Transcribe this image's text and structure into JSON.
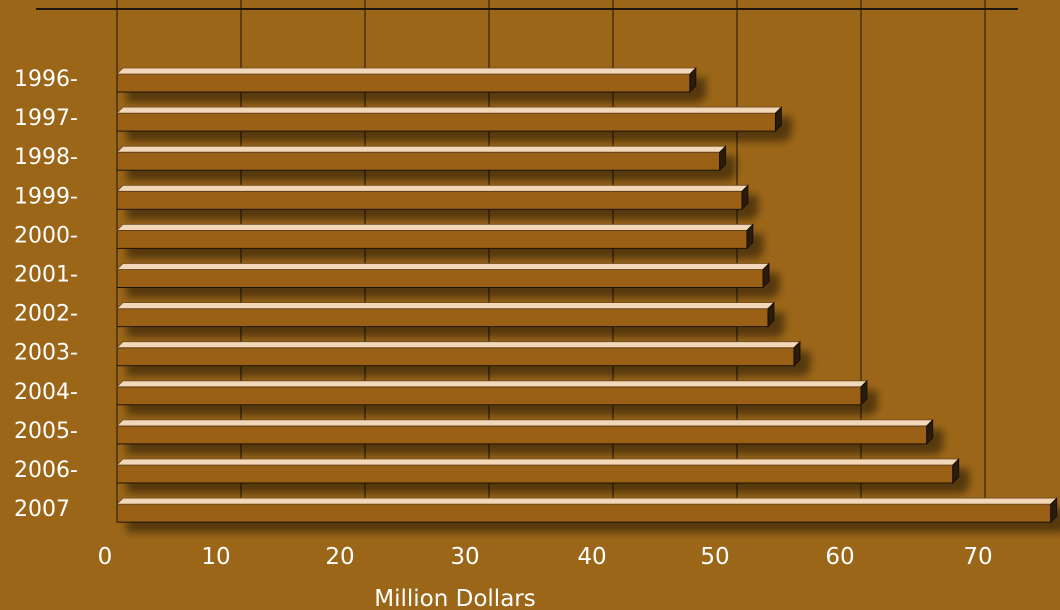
{
  "chart_data": {
    "type": "bar",
    "orientation": "horizontal",
    "categories": [
      "1996-",
      "1997-",
      "1998-",
      "1999-",
      "2000-",
      "2001-",
      "2002-",
      "2003-",
      "2004-",
      "2005-",
      "2006-",
      "2007"
    ],
    "values": [
      46.2,
      53.1,
      48.6,
      50.4,
      50.8,
      52.1,
      52.5,
      54.6,
      60.0,
      65.3,
      67.4,
      75.3
    ],
    "xlabel": "Million Dollars",
    "xticks": [
      "0",
      "10",
      "20",
      "30",
      "40",
      "50",
      "60",
      "70"
    ],
    "xlim": [
      0,
      76
    ],
    "grid": true,
    "legend": "none"
  },
  "colors": {
    "background": "#9b6618",
    "bar_top": "#f2d7b8",
    "bar_front": "#9a6117",
    "bar_side": "#2a1a08",
    "grid": "#1f1408",
    "text": "#ffffff"
  }
}
